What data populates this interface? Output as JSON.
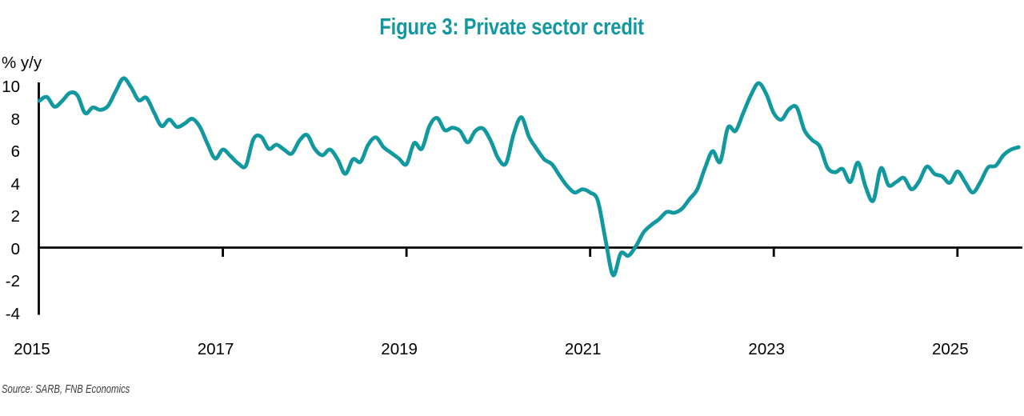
{
  "figure": {
    "title": "Figure 3: Private sector credit",
    "y_axis_title": "% y/y",
    "source_note": "Source: SARB, FNB Economics"
  },
  "colors": {
    "accent_teal": "#12999F",
    "axis_black": "#000000",
    "source_gray": "#3C3C3C"
  },
  "chart_data": {
    "type": "line",
    "title": "Figure 3: Private sector credit",
    "ylabel": "% y/y",
    "xlabel": "",
    "series_name": "Private sector credit",
    "unit": "% y/y",
    "frequency": "monthly",
    "x_start": "2015-01",
    "x_end": "2025-09",
    "ylim": [
      -4,
      10
    ],
    "grid": false,
    "legend": false,
    "x_tick_labels": [
      "2015",
      "2017",
      "2019",
      "2021",
      "2023",
      "2025"
    ],
    "y_tick_labels": [
      "10",
      "8",
      "6",
      "4",
      "2",
      "0",
      "-2",
      "-4"
    ],
    "y_tick_values": [
      10,
      8,
      6,
      4,
      2,
      0,
      -2,
      -4
    ],
    "values": [
      9.05,
      9.3,
      8.7,
      9.05,
      9.55,
      9.4,
      8.3,
      8.65,
      8.5,
      8.75,
      9.65,
      10.45,
      9.9,
      9.1,
      9.25,
      8.35,
      7.5,
      7.9,
      7.45,
      7.65,
      7.95,
      7.45,
      6.4,
      5.5,
      6.05,
      5.65,
      5.2,
      5.05,
      6.7,
      6.85,
      6.1,
      6.35,
      6.05,
      5.8,
      6.6,
      6.95,
      6.1,
      5.7,
      6.05,
      5.45,
      4.55,
      5.45,
      5.3,
      6.35,
      6.8,
      6.2,
      5.85,
      5.5,
      5.15,
      6.45,
      6.1,
      7.5,
      8.0,
      7.25,
      7.4,
      7.2,
      6.5,
      7.2,
      7.35,
      6.6,
      5.5,
      5.2,
      7.0,
      8.05,
      6.85,
      6.1,
      5.45,
      5.15,
      4.45,
      3.8,
      3.4,
      3.6,
      3.4,
      2.9,
      0.5,
      -1.7,
      -0.35,
      -0.5,
      0.1,
      0.95,
      1.4,
      1.75,
      2.2,
      2.15,
      2.4,
      3.0,
      3.6,
      4.9,
      5.95,
      5.3,
      7.4,
      7.2,
      8.3,
      9.4,
      10.15,
      9.5,
      8.3,
      7.9,
      8.55,
      8.65,
      7.25,
      6.65,
      6.25,
      4.95,
      4.65,
      4.85,
      4.05,
      5.25,
      3.75,
      2.9,
      4.9,
      3.85,
      4.05,
      4.3,
      3.6,
      4.1,
      5.0,
      4.55,
      4.4,
      4.0,
      4.7,
      4.05,
      3.4,
      4.05,
      4.95,
      5.05,
      5.7,
      6.05,
      6.2
    ]
  }
}
